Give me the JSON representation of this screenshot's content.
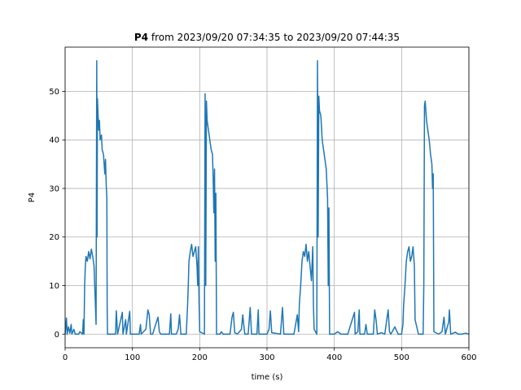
{
  "chart_data": {
    "type": "line",
    "title": {
      "bold": "P4",
      "text": "from 2023/09/20 07:34:35 to 2023/09/20 07:44:35"
    },
    "xlabel": "time (s)",
    "ylabel": "P4",
    "color": "#1f77b4",
    "grid": true,
    "xlim": [
      0,
      600
    ],
    "ylim": [
      -2.8,
      59.1
    ],
    "xticks": [
      0,
      100,
      200,
      300,
      400,
      500,
      600
    ],
    "yticks": [
      0,
      10,
      20,
      30,
      40,
      50
    ],
    "x": [
      0,
      2,
      3,
      5,
      7,
      9,
      10,
      13,
      15,
      20,
      22,
      26,
      27,
      28,
      29,
      30,
      31,
      33,
      35,
      37,
      39,
      41,
      43,
      44,
      45,
      46,
      47,
      47.5,
      48,
      49,
      50,
      51,
      52,
      54,
      55,
      57,
      58,
      59,
      60,
      61,
      62,
      62.5,
      63,
      70,
      75,
      76,
      78,
      85,
      86,
      90,
      91,
      96,
      97,
      110,
      112,
      113,
      120,
      123,
      125,
      127,
      130,
      138,
      140,
      142,
      155,
      157,
      158,
      165,
      168,
      170,
      172,
      180,
      182,
      183,
      184,
      186,
      188,
      190,
      192,
      194,
      196,
      197,
      198,
      199,
      200,
      207,
      208,
      209,
      210,
      211,
      213,
      215,
      217,
      219,
      220,
      221,
      222,
      223,
      224,
      225,
      230,
      232,
      235,
      245,
      248,
      250,
      252,
      256,
      262,
      264,
      265,
      267,
      272,
      275,
      277,
      285,
      287,
      288,
      300,
      303,
      305,
      307,
      320,
      323,
      325,
      340,
      345,
      347,
      348,
      350,
      352,
      354,
      356,
      358,
      360,
      362,
      364,
      366,
      368,
      369,
      370,
      374,
      375,
      376,
      377,
      378,
      380,
      382,
      384,
      386,
      388,
      390,
      391,
      392,
      393,
      400,
      405,
      410,
      420,
      430,
      431,
      435,
      437,
      438,
      445,
      447,
      449,
      458,
      460,
      462,
      464,
      470,
      475,
      480,
      482,
      484,
      490,
      495,
      500,
      502,
      503,
      505,
      507,
      509,
      511,
      513,
      515,
      517,
      519,
      520,
      525,
      532,
      533,
      534,
      535,
      537,
      539,
      541,
      543,
      545,
      546,
      547,
      548,
      555,
      560,
      563,
      565,
      570,
      571,
      573,
      580,
      584,
      590,
      595,
      600
    ],
    "values": [
      0,
      3.3,
      0,
      1.5,
      0.2,
      2,
      0,
      1,
      0,
      0,
      0.5,
      0,
      3,
      0,
      10,
      14,
      16,
      15,
      17,
      15.5,
      17.5,
      16,
      14,
      10,
      6,
      2,
      56.3,
      20,
      48.5,
      45,
      42,
      44,
      40,
      41,
      38,
      37,
      35,
      33,
      36,
      31,
      28,
      5,
      0,
      0,
      0,
      4.8,
      0,
      4.5,
      0,
      3,
      0,
      4.7,
      0,
      0,
      2,
      0,
      1,
      5,
      4,
      0,
      0,
      3.5,
      0.5,
      0,
      0,
      4.2,
      0,
      0,
      1,
      4,
      0,
      0,
      6,
      10,
      15,
      17,
      18.5,
      16,
      17,
      18,
      14,
      10,
      18,
      7,
      0.5,
      0,
      49.5,
      10,
      48,
      44,
      42,
      40,
      38,
      37,
      32,
      25,
      34,
      15,
      29,
      0,
      0,
      0.5,
      0,
      0,
      3.5,
      4.5,
      0.3,
      0,
      1,
      4,
      2.5,
      0,
      0,
      5.5,
      0,
      0,
      5,
      0,
      0,
      1,
      4.8,
      0.3,
      0,
      5.5,
      0,
      0,
      4,
      0.5,
      6,
      10,
      15,
      17,
      16,
      18.5,
      15,
      17,
      14,
      11,
      18,
      6,
      1,
      0,
      56.3,
      20,
      49,
      46,
      45,
      40,
      38,
      36,
      34,
      28,
      10,
      26,
      0,
      0,
      0.5,
      0,
      0,
      4.5,
      0,
      0.5,
      5,
      0,
      0,
      2,
      0,
      0,
      5,
      3,
      0,
      0.3,
      0,
      5,
      0.5,
      0,
      1.5,
      0,
      0,
      2,
      6,
      10,
      15,
      17,
      18,
      15,
      16,
      18,
      14,
      3,
      0,
      0,
      10,
      47,
      48,
      44,
      42,
      40,
      37,
      35,
      30,
      33,
      0.5,
      0,
      0.5,
      3.5,
      0,
      2.5,
      5,
      0,
      0.4,
      0,
      0,
      0.2,
      0
    ]
  }
}
